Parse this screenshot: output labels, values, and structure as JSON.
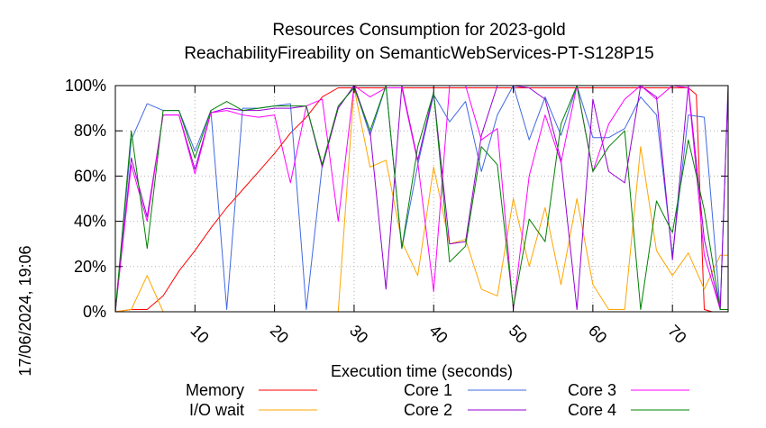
{
  "chart_data": {
    "type": "line",
    "title": "Resources Consumption for 2023-gold",
    "subtitle": "ReachabilityFireability on SemanticWebServices-PT-S128P15",
    "xlabel": "Execution time (seconds)",
    "ylabel": "",
    "side_label": "17/06/2024, 19:06",
    "xlim": [
      0,
      77
    ],
    "ylim": [
      0,
      100
    ],
    "x_ticks": [
      10,
      20,
      30,
      40,
      50,
      60,
      70
    ],
    "y_ticks": [
      0,
      20,
      40,
      60,
      80,
      100
    ],
    "y_tick_labels": [
      "0%",
      "20%",
      "40%",
      "60%",
      "80%",
      "100%"
    ],
    "grid": true,
    "legend_position": "bottom",
    "series": [
      {
        "name": "Memory",
        "color": "#ff0000",
        "x": [
          0,
          2,
          4,
          6,
          8,
          10,
          12,
          14,
          16,
          18,
          20,
          22,
          24,
          26,
          28,
          30,
          32,
          34,
          36,
          38,
          40,
          42,
          44,
          46,
          48,
          50,
          52,
          54,
          56,
          58,
          60,
          62,
          64,
          66,
          68,
          70,
          72,
          73,
          74,
          75,
          77
        ],
        "values": [
          0,
          1,
          1,
          7,
          18,
          27,
          37,
          46,
          54,
          62,
          70,
          79,
          86,
          95,
          99,
          99,
          99,
          99,
          99,
          99,
          99,
          99,
          99,
          99,
          99,
          99,
          99,
          99,
          99,
          99,
          99,
          99,
          99,
          99,
          99,
          99,
          99,
          96,
          1,
          0,
          0
        ]
      },
      {
        "name": "I/O wait",
        "color": "#ffa500",
        "x": [
          0,
          2,
          4,
          6,
          8,
          10,
          12,
          14,
          16,
          18,
          20,
          22,
          24,
          26,
          28,
          30,
          32,
          34,
          36,
          38,
          40,
          42,
          44,
          46,
          48,
          50,
          52,
          54,
          56,
          58,
          60,
          62,
          64,
          66,
          68,
          70,
          72,
          74,
          76,
          77
        ],
        "values": [
          0,
          1,
          16,
          0,
          0,
          0,
          0,
          0,
          0,
          0,
          0,
          0,
          0,
          0,
          0,
          99,
          64,
          67,
          31,
          16,
          64,
          30,
          32,
          10,
          7,
          50,
          20,
          46,
          12,
          50,
          12,
          1,
          1,
          73,
          27,
          16,
          26,
          10,
          25,
          25
        ]
      },
      {
        "name": "Core 1",
        "color": "#4169e1",
        "x": [
          0,
          2,
          4,
          6,
          8,
          10,
          12,
          14,
          16,
          18,
          20,
          22,
          24,
          26,
          28,
          30,
          32,
          34,
          36,
          38,
          40,
          42,
          44,
          46,
          48,
          50,
          52,
          54,
          56,
          58,
          60,
          62,
          64,
          66,
          68,
          70,
          72,
          74,
          76,
          77
        ],
        "values": [
          0,
          76,
          92,
          89,
          89,
          71,
          89,
          1,
          90,
          90,
          91,
          92,
          1,
          65,
          90,
          100,
          78,
          100,
          28,
          65,
          96,
          84,
          93,
          62,
          87,
          100,
          76,
          95,
          78,
          100,
          77,
          77,
          81,
          95,
          87,
          25,
          87,
          86,
          1,
          100
        ]
      },
      {
        "name": "Core 2",
        "color": "#9400d3",
        "x": [
          0,
          2,
          4,
          6,
          8,
          10,
          12,
          14,
          16,
          18,
          20,
          22,
          24,
          26,
          28,
          30,
          32,
          34,
          36,
          38,
          40,
          42,
          44,
          46,
          48,
          50,
          52,
          54,
          56,
          58,
          60,
          62,
          64,
          66,
          68,
          70,
          72,
          74,
          76,
          77
        ],
        "values": [
          0,
          68,
          42,
          87,
          87,
          63,
          88,
          90,
          89,
          89,
          90,
          90,
          91,
          64,
          90,
          100,
          80,
          10,
          100,
          67,
          97,
          30,
          31,
          78,
          100,
          100,
          99,
          94,
          67,
          1,
          94,
          62,
          57,
          100,
          95,
          23,
          100,
          32,
          1,
          100
        ]
      },
      {
        "name": "Core 3",
        "color": "#ff00ff",
        "x": [
          0,
          2,
          4,
          6,
          8,
          10,
          12,
          14,
          16,
          18,
          20,
          22,
          24,
          26,
          28,
          30,
          32,
          34,
          36,
          38,
          40,
          42,
          44,
          46,
          48,
          50,
          52,
          54,
          56,
          58,
          60,
          62,
          64,
          66,
          68,
          70,
          72,
          74,
          76,
          77
        ],
        "values": [
          0,
          65,
          40,
          87,
          87,
          61,
          88,
          89,
          87,
          86,
          87,
          57,
          91,
          94,
          40,
          100,
          95,
          99,
          99,
          66,
          9,
          100,
          100,
          76,
          81,
          1,
          60,
          87,
          66,
          100,
          62,
          83,
          94,
          100,
          94,
          100,
          99,
          25,
          1,
          1
        ]
      },
      {
        "name": "Core 4",
        "color": "#008000",
        "x": [
          0,
          2,
          4,
          6,
          8,
          10,
          12,
          14,
          16,
          18,
          20,
          22,
          24,
          26,
          28,
          30,
          32,
          34,
          36,
          38,
          40,
          42,
          44,
          46,
          48,
          50,
          52,
          54,
          56,
          58,
          60,
          62,
          64,
          66,
          68,
          70,
          72,
          74,
          76,
          77
        ],
        "values": [
          0,
          80,
          28,
          89,
          89,
          68,
          89,
          93,
          89,
          90,
          91,
          91,
          91,
          65,
          91,
          99,
          80,
          100,
          28,
          73,
          97,
          22,
          29,
          73,
          65,
          2,
          41,
          31,
          83,
          100,
          62,
          73,
          80,
          1,
          49,
          35,
          76,
          45,
          1,
          1
        ]
      }
    ]
  }
}
